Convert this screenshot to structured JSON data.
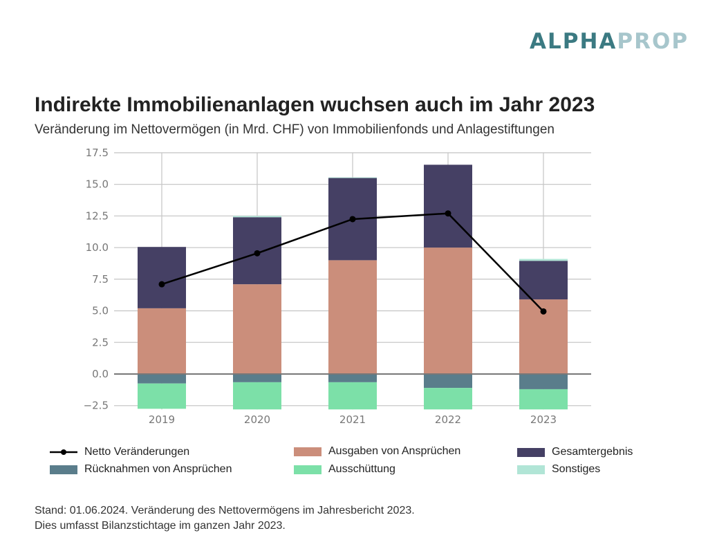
{
  "logo": {
    "part1": "ALPHA",
    "part2": "PROP"
  },
  "title": "Indirekte Immobilienanlagen wuchsen auch im Jahr 2023",
  "subtitle": "Veränderung im Nettovermögen (in Mrd. CHF) von Immobilienfonds und Anlagestiftungen",
  "footnote": {
    "line1": "Stand: 01.06.2024. Veränderung des Nettovermögens im Jahresbericht 2023.",
    "line2": "Dies umfasst Bilanzstichtage im ganzen Jahr 2023."
  },
  "chart_data": {
    "type": "bar",
    "stacked": true,
    "categories": [
      "2019",
      "2020",
      "2021",
      "2022",
      "2023"
    ],
    "ylim": [
      -2.8,
      17.5
    ],
    "yticks": [
      "−2.5",
      "0.0",
      "2.5",
      "5.0",
      "7.5",
      "10.0",
      "12.5",
      "15.0",
      "17.5"
    ],
    "ytick_values": [
      -2.5,
      0,
      2.5,
      5,
      7.5,
      10,
      12.5,
      15,
      17.5
    ],
    "grid": true,
    "legend_position": "bottom",
    "series": [
      {
        "name": "Ausgaben von Ansprüchen",
        "color": "#cb8e7b",
        "values": [
          5.2,
          7.1,
          9.0,
          10.0,
          5.9
        ]
      },
      {
        "name": "Gesamtergebnis",
        "color": "#454064",
        "values": [
          4.85,
          5.3,
          6.5,
          6.55,
          3.05
        ]
      },
      {
        "name": "Sonstiges",
        "color": "#b1e5d6",
        "values": [
          0.0,
          0.1,
          0.05,
          0.0,
          0.15
        ]
      },
      {
        "name": "Rücknahmen von Ansprüchen",
        "color": "#5a7d8b",
        "values": [
          -0.75,
          -0.65,
          -0.65,
          -1.1,
          -1.2
        ]
      },
      {
        "name": "Ausschüttung",
        "color": "#7ce0a8",
        "values": [
          -2.0,
          -2.15,
          -2.15,
          -1.7,
          -1.6
        ]
      }
    ],
    "line": {
      "name": "Netto Veränderungen",
      "color": "#000000",
      "values": [
        7.1,
        9.55,
        12.25,
        12.7,
        4.95
      ]
    }
  }
}
